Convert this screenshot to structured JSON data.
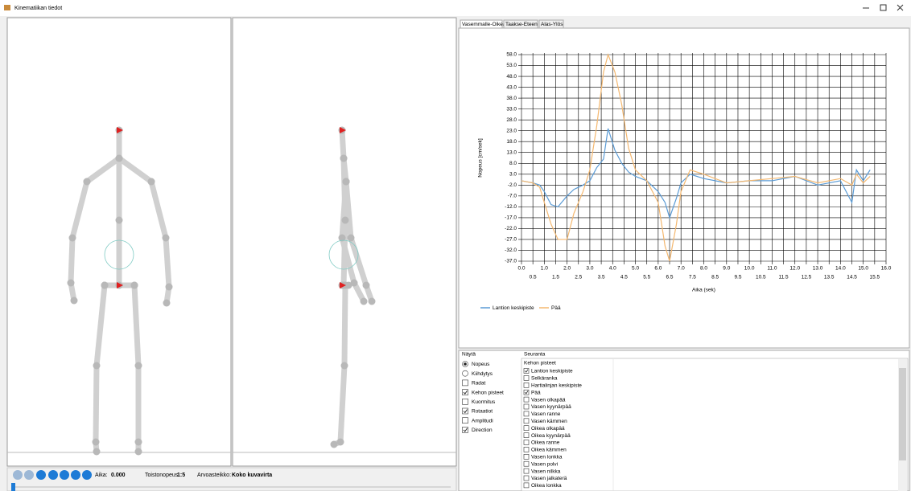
{
  "window": {
    "title": "Kinematiikan tiedot"
  },
  "playback": {
    "time_label": "Aika:",
    "time": "0.000",
    "speed_label": "Toistonopeus:",
    "speed": "1:5",
    "scale_label": "Arvoasteikko:",
    "scale": "Koko kuvavirta"
  },
  "tabs": [
    "Vasemmalle-Oikealle",
    "Taakse-Eteen",
    "Alas-Ylös"
  ],
  "chart_data": {
    "type": "line",
    "x_label": "Aika (sek)",
    "y_label": "Nopeus [cm/sek]",
    "grid": true,
    "xlim": [
      0,
      16
    ],
    "ylim": [
      -37,
      58
    ],
    "xticks": [
      {
        "value": 0,
        "label": "0.0"
      },
      {
        "value": 0.5,
        "label": "0.5"
      },
      {
        "value": 1,
        "label": "1.0"
      },
      {
        "value": 1.5,
        "label": "1.5"
      },
      {
        "value": 2,
        "label": "2.0"
      },
      {
        "value": 2.5,
        "label": "2.5"
      },
      {
        "value": 3,
        "label": "3.0"
      },
      {
        "value": 3.5,
        "label": "3.5"
      },
      {
        "value": 4,
        "label": "4.0"
      },
      {
        "value": 4.5,
        "label": "4.5"
      },
      {
        "value": 5,
        "label": "5.0"
      },
      {
        "value": 5.5,
        "label": "5.5"
      },
      {
        "value": 6,
        "label": "6.0"
      },
      {
        "value": 6.5,
        "label": "6.5"
      },
      {
        "value": 7,
        "label": "7.0"
      },
      {
        "value": 7.5,
        "label": "7.5"
      },
      {
        "value": 8,
        "label": "8.0"
      },
      {
        "value": 8.5,
        "label": "8.5"
      },
      {
        "value": 9,
        "label": "9.0"
      },
      {
        "value": 9.5,
        "label": "9.5"
      },
      {
        "value": 10,
        "label": "10.0"
      },
      {
        "value": 10.5,
        "label": "10.5"
      },
      {
        "value": 11,
        "label": "11.0"
      },
      {
        "value": 11.5,
        "label": "11.5"
      },
      {
        "value": 12,
        "label": "12.0"
      },
      {
        "value": 12.5,
        "label": "12.5"
      },
      {
        "value": 13,
        "label": "13.0"
      },
      {
        "value": 13.5,
        "label": "13.5"
      },
      {
        "value": 14,
        "label": "14.0"
      },
      {
        "value": 14.5,
        "label": "14.5"
      },
      {
        "value": 15,
        "label": "15.0"
      },
      {
        "value": 15.5,
        "label": "15.5"
      },
      {
        "value": 16,
        "label": "16.0"
      }
    ],
    "yticks": [
      {
        "value": 58,
        "label": "58.0"
      },
      {
        "value": 53,
        "label": "53.0"
      },
      {
        "value": 48,
        "label": "48.0"
      },
      {
        "value": 43,
        "label": "43.0"
      },
      {
        "value": 38,
        "label": "38.0"
      },
      {
        "value": 33,
        "label": "33.0"
      },
      {
        "value": 28,
        "label": "28.0"
      },
      {
        "value": 23,
        "label": "23.0"
      },
      {
        "value": 18,
        "label": "18.0"
      },
      {
        "value": 13,
        "label": "13.0"
      },
      {
        "value": 8,
        "label": "8.0"
      },
      {
        "value": 3,
        "label": "3.0"
      },
      {
        "value": -2,
        "label": "-2.0"
      },
      {
        "value": -7,
        "label": "-7.0"
      },
      {
        "value": -12,
        "label": "-12.0"
      },
      {
        "value": -17,
        "label": "-17.0"
      },
      {
        "value": -22,
        "label": "-22.0"
      },
      {
        "value": -27,
        "label": "-27.0"
      },
      {
        "value": -32,
        "label": "-32.0"
      },
      {
        "value": -37,
        "label": "-37.0"
      }
    ],
    "x": [
      0,
      0.5,
      0.8,
      1.0,
      1.3,
      1.6,
      2.0,
      2.3,
      2.7,
      3.0,
      3.3,
      3.6,
      3.8,
      4.1,
      4.4,
      4.7,
      5.0,
      5.5,
      6.0,
      6.3,
      6.5,
      6.8,
      7.0,
      7.4,
      8.0,
      9.0,
      10.0,
      11.0,
      12.0,
      13.0,
      14.0,
      14.5,
      14.7,
      15.0,
      15.3
    ],
    "series": [
      {
        "name": "Lantion keskipiste",
        "color": "#5b9bd5",
        "values": [
          0,
          -1,
          -2,
          -5,
          -11,
          -12,
          -7,
          -4,
          -2,
          0,
          6,
          10,
          24,
          14,
          8,
          4,
          2,
          0,
          -5,
          -10,
          -17,
          -8,
          -1,
          3,
          1,
          -1,
          0,
          0,
          2,
          -2,
          0,
          -10,
          5,
          0,
          5
        ]
      },
      {
        "name": "Pää",
        "color": "#f4b870",
        "values": [
          0,
          -1,
          -3,
          -10,
          -20,
          -27,
          -27,
          -15,
          -5,
          5,
          25,
          50,
          58,
          50,
          35,
          15,
          5,
          0,
          -10,
          -30,
          -37,
          -20,
          -5,
          5,
          3,
          -1,
          0,
          1,
          2,
          -1,
          1,
          -2,
          3,
          -1,
          2
        ]
      }
    ]
  },
  "options": {
    "title": "Näytä",
    "items": [
      {
        "label": "Nopeus",
        "kind": "radio",
        "checked": true
      },
      {
        "label": "Kiihdytys",
        "kind": "radio",
        "checked": false
      },
      {
        "label": "Radat",
        "kind": "check",
        "checked": false
      },
      {
        "label": "Kehon pisteet",
        "kind": "check",
        "checked": true
      },
      {
        "label": "Kuormitus",
        "kind": "check",
        "checked": false
      },
      {
        "label": "Rotaatiot",
        "kind": "check",
        "checked": true
      },
      {
        "label": "Amplitudi",
        "kind": "check",
        "checked": false
      },
      {
        "label": "Direction",
        "kind": "check",
        "checked": true
      }
    ]
  },
  "tracking": {
    "title": "Seuranta",
    "group": "Kehon pisteet",
    "items": [
      {
        "label": "Lantion keskipiste",
        "checked": true
      },
      {
        "label": "Selkäranka",
        "checked": false
      },
      {
        "label": "Hartialinjan keskipiste",
        "checked": false
      },
      {
        "label": "Pää",
        "checked": true
      },
      {
        "label": "Vasen olkapää",
        "checked": false
      },
      {
        "label": "Vasen kyynärpää",
        "checked": false
      },
      {
        "label": "Vasen ranne",
        "checked": false
      },
      {
        "label": "Vasen kämmen",
        "checked": false
      },
      {
        "label": "Oikea olkapää",
        "checked": false
      },
      {
        "label": "Oikea kyynärpää",
        "checked": false
      },
      {
        "label": "Oikea ranne",
        "checked": false
      },
      {
        "label": "Oikea kämmen",
        "checked": false
      },
      {
        "label": "Vasen lonkka",
        "checked": false
      },
      {
        "label": "Vasen polvi",
        "checked": false
      },
      {
        "label": "Vasen nilkka",
        "checked": false
      },
      {
        "label": "Vasen jalkaterä",
        "checked": false
      },
      {
        "label": "Oikea lonkka",
        "checked": false
      }
    ]
  }
}
